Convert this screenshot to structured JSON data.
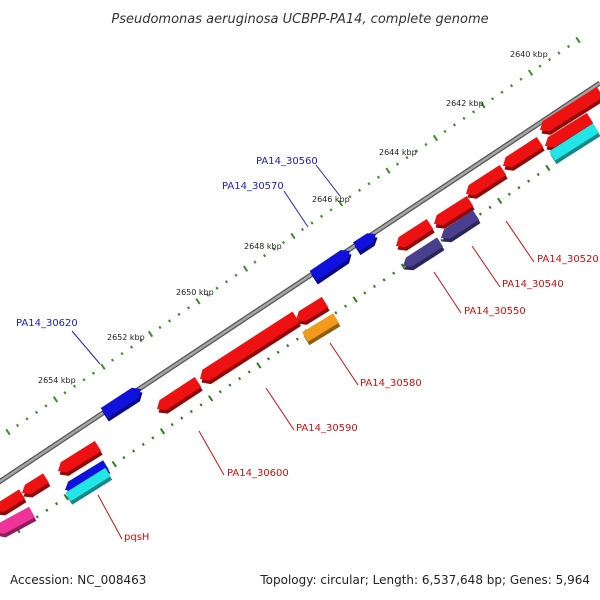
{
  "title": "Pseudomonas aeruginosa UCBPP-PA14, complete genome",
  "footer": {
    "accession": "Accession: NC_008463",
    "topology": "Topology: circular; Length: 6,537,648 bp; Genes: 5,964"
  },
  "colors": {
    "backbone": "#8c8c8c",
    "tick_outer": "#3a8f2a",
    "tick_inner": "#2e7d1e",
    "gene_red": "#ee1111",
    "gene_blue": "#1111dd",
    "gene_darkblue": "#4a3f8f",
    "gene_cyan": "#22e5e5",
    "gene_orange": "#f39a1c",
    "gene_pink": "#ee3399",
    "label_blue": "#2020c0",
    "label_red": "#cc1111"
  },
  "scale_labels": [
    "2640 kbp",
    "2642 kbp",
    "2644 kbp",
    "2646 kbp",
    "2648 kbp",
    "2650 kbp",
    "2652 kbp",
    "2654 kbp"
  ],
  "gene_labels_forward": [
    "PA14_30560",
    "PA14_30570",
    "PA14_30620"
  ],
  "gene_labels_reverse": [
    "PA14_30520",
    "PA14_30540",
    "PA14_30550",
    "PA14_30580",
    "PA14_30590",
    "PA14_30600",
    "pqsH"
  ]
}
